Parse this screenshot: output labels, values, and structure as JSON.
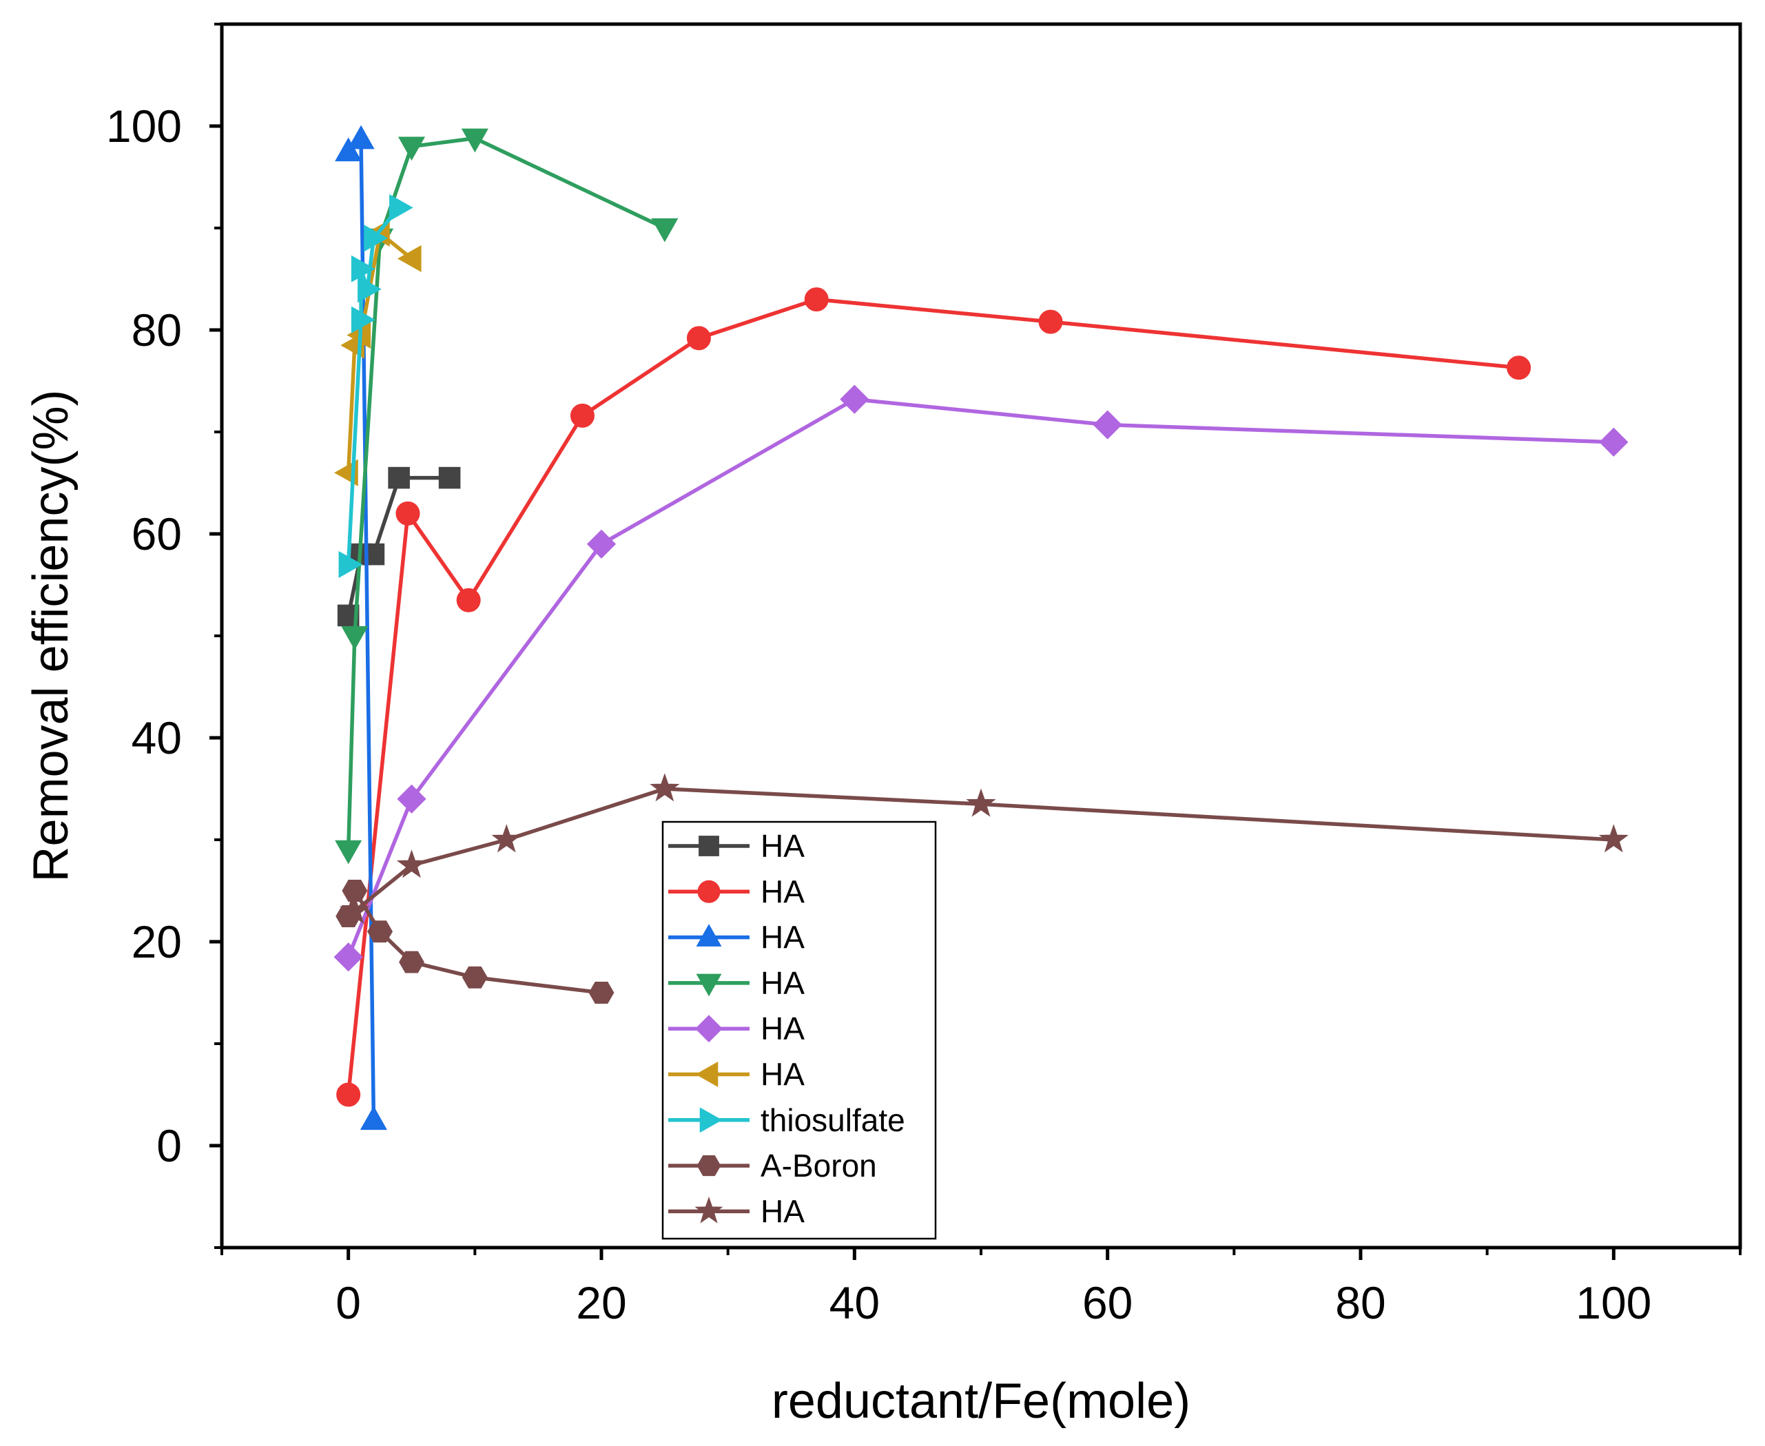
{
  "chart_data": {
    "type": "line",
    "title": "",
    "xlabel": "reductant/Fe(mole)",
    "ylabel": "Removal efficiency(%)",
    "xlim": [
      -10,
      110
    ],
    "ylim": [
      -10,
      110
    ],
    "xticks": [
      0,
      20,
      40,
      60,
      80,
      100
    ],
    "yticks": [
      0,
      20,
      40,
      60,
      80,
      100
    ],
    "grid": false,
    "legend_position": "bottom-center",
    "series": [
      {
        "name": "HA",
        "color": "#444444",
        "marker": "square",
        "x": [
          0,
          1,
          2,
          4,
          8
        ],
        "y": [
          52,
          58,
          58,
          65.5,
          65.5
        ]
      },
      {
        "name": "HA",
        "color": "#ee3333",
        "marker": "circle",
        "x": [
          0,
          4.7,
          9.5,
          18.5,
          27.7,
          37,
          55.5,
          92.5
        ],
        "y": [
          5,
          62,
          53.5,
          71.6,
          79.2,
          83,
          80.8,
          76.3
        ]
      },
      {
        "name": "HA",
        "color": "#1a6ee6",
        "marker": "triangle-up",
        "x": [
          0,
          1,
          2
        ],
        "y": [
          97.5,
          98.7,
          2.5
        ]
      },
      {
        "name": "HA",
        "color": "#2e9e5e",
        "marker": "triangle-down",
        "x": [
          0,
          0.5,
          2.5,
          5,
          10,
          25
        ],
        "y": [
          29,
          50,
          89,
          98,
          98.8,
          90
        ]
      },
      {
        "name": "HA",
        "color": "#b066e0",
        "marker": "diamond",
        "x": [
          0,
          5,
          20,
          40,
          60,
          100
        ],
        "y": [
          18.5,
          34,
          59,
          73.2,
          70.7,
          69
        ]
      },
      {
        "name": "HA",
        "color": "#c9981a",
        "marker": "triangle-left",
        "x": [
          0,
          0.5,
          1,
          2.5,
          5
        ],
        "y": [
          66,
          78.5,
          79.5,
          89.5,
          87
        ]
      },
      {
        "name": "thiosulfate",
        "color": "#22c4d0",
        "marker": "triangle-right",
        "x": [
          0,
          1,
          1,
          1.5,
          2,
          4
        ],
        "y": [
          57,
          81,
          86,
          84,
          89,
          92
        ]
      },
      {
        "name": "A-Boron",
        "color": "#7a4a4a",
        "marker": "hexagon",
        "x": [
          0,
          0.5,
          2.5,
          5,
          10,
          20
        ],
        "y": [
          22.5,
          25,
          21,
          18,
          16.5,
          15
        ]
      },
      {
        "name": "HA",
        "color": "#7a4a4a",
        "marker": "star",
        "x": [
          0.5,
          5,
          12.5,
          25,
          50,
          100
        ],
        "y": [
          23,
          27.5,
          30,
          35,
          33.5,
          30
        ]
      }
    ]
  }
}
